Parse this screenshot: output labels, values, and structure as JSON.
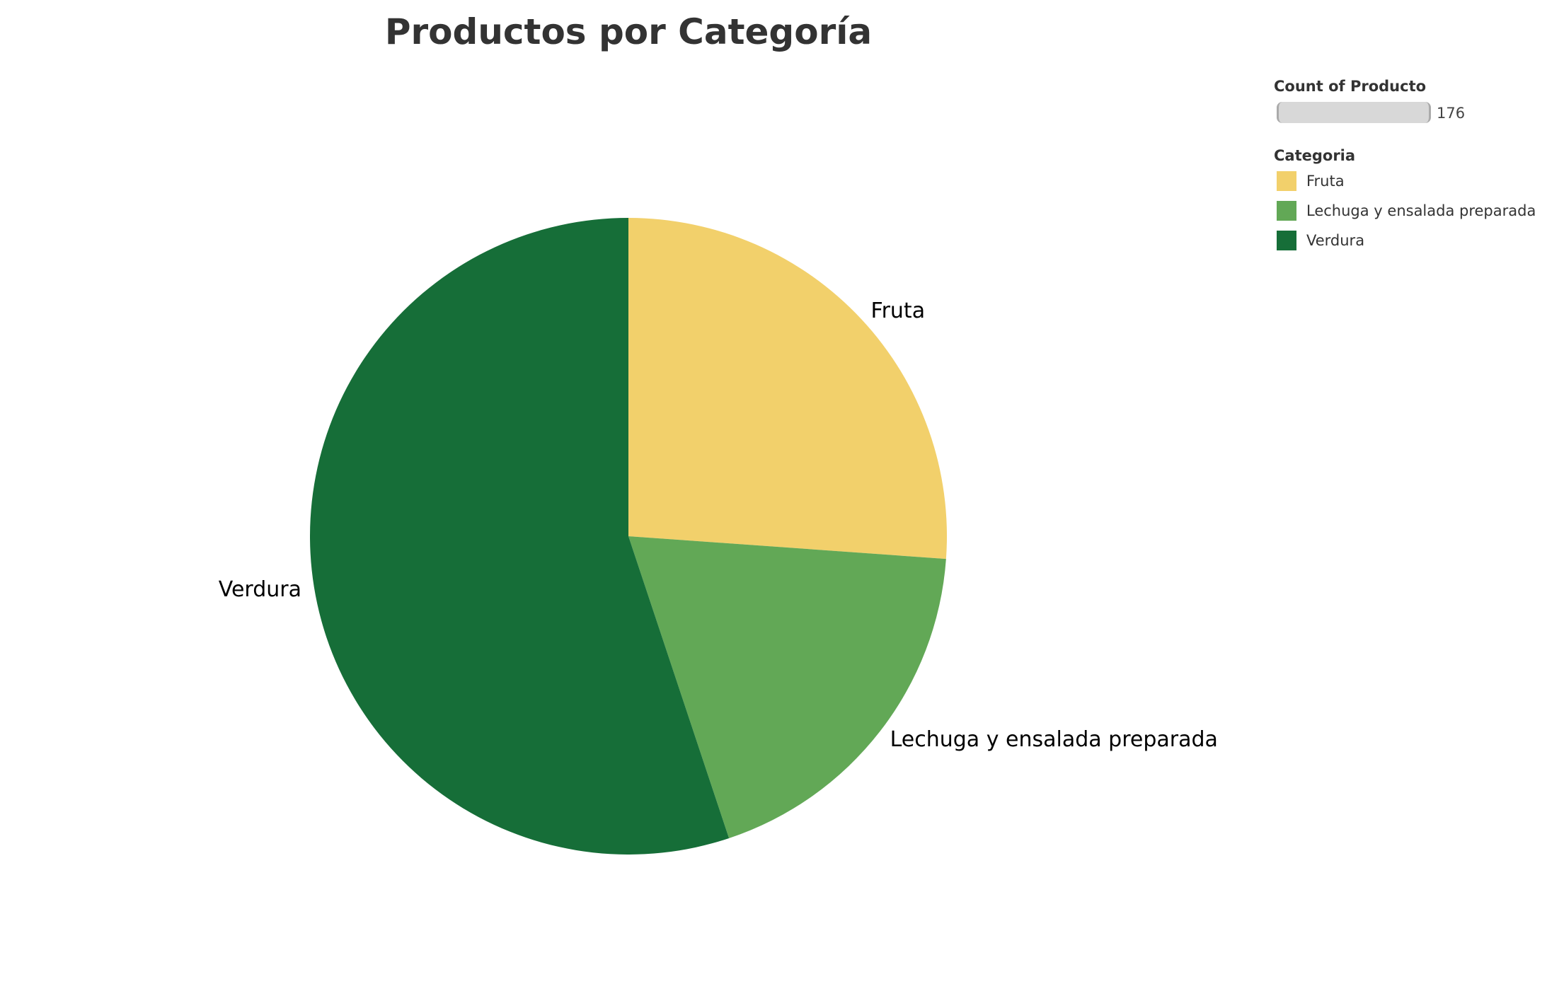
{
  "chart_data": {
    "type": "pie",
    "title": "Productos por Categoría",
    "categories": [
      "Fruta",
      "Lechuga y ensalada preparada",
      "Verdura"
    ],
    "values": [
      46,
      33,
      97
    ],
    "total": 176,
    "colors": [
      "#F2D06B",
      "#62A856",
      "#166E38"
    ],
    "slice_order": [
      "Fruta",
      "Lechuga y ensalada preparada",
      "Verdura"
    ],
    "start_direction": "top, clockwise",
    "legend_placement": "top-right"
  },
  "legend": {
    "size_title": "Count of Producto",
    "size_value": "176",
    "color_title": "Categoria",
    "items": [
      {
        "label": "Fruta",
        "color": "#F2D06B"
      },
      {
        "label": "Lechuga y ensalada preparada",
        "color": "#62A856"
      },
      {
        "label": "Verdura",
        "color": "#166E38"
      }
    ]
  }
}
